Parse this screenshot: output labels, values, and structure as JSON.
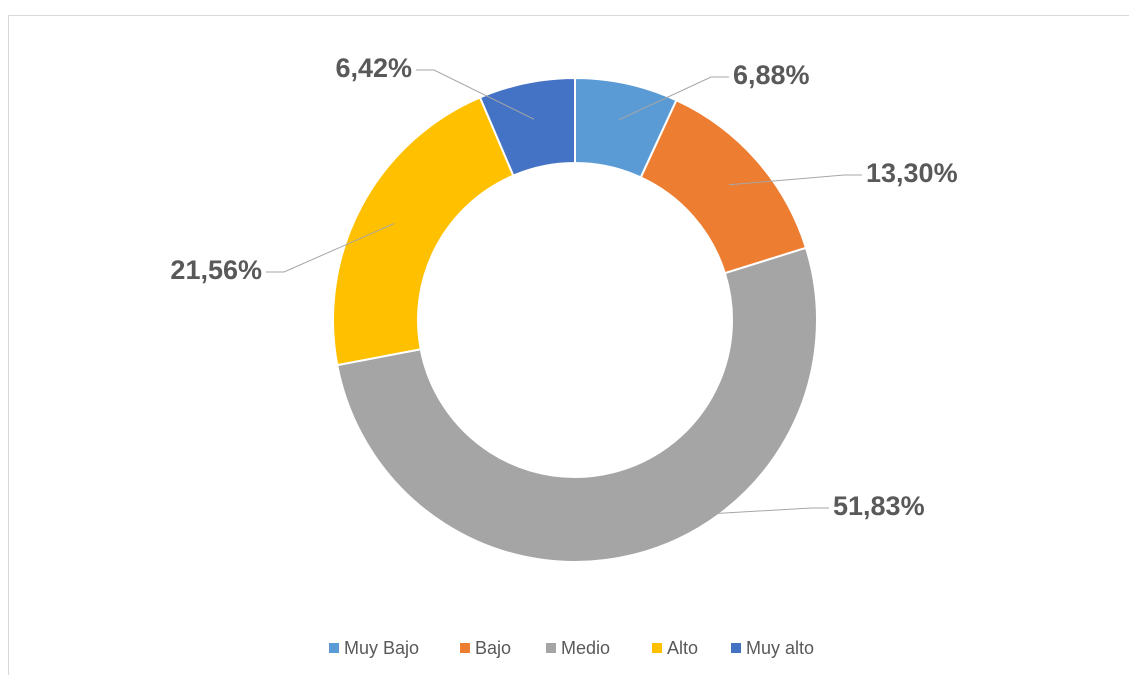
{
  "chart_data": {
    "type": "donut",
    "categories": [
      "Muy Bajo",
      "Bajo",
      "Medio",
      "Alto",
      "Muy alto"
    ],
    "values": [
      6.88,
      13.3,
      51.83,
      21.56,
      6.42
    ],
    "value_labels": [
      "6,88%",
      "13,30%",
      "51,83%",
      "21,56%",
      "6,42%"
    ],
    "colors": [
      "#5b9bd5",
      "#ed7d31",
      "#a5a5a5",
      "#ffc000",
      "#4472c4"
    ],
    "legend": "bottom"
  }
}
